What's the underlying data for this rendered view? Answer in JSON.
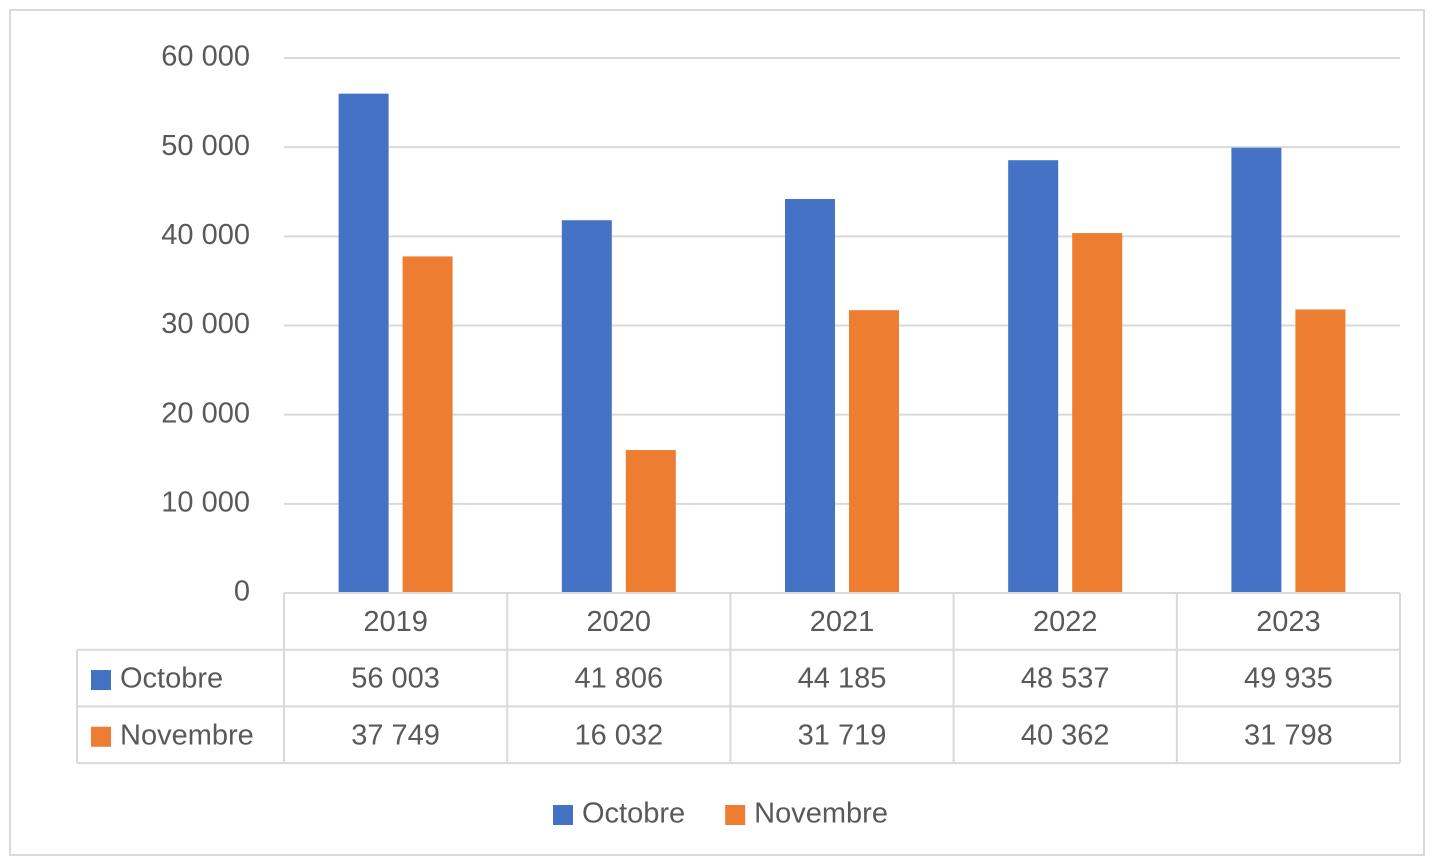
{
  "chart_data": {
    "type": "bar",
    "categories": [
      "2019",
      "2020",
      "2021",
      "2022",
      "2023"
    ],
    "series": [
      {
        "name": "Octobre",
        "color": "#4472c4",
        "values": [
          56003,
          41806,
          44185,
          48537,
          49935
        ],
        "value_labels": [
          "56 003",
          "41 806",
          "44 185",
          "48 537",
          "49 935"
        ]
      },
      {
        "name": "Novembre",
        "color": "#ed7d31",
        "values": [
          37749,
          16032,
          31719,
          40362,
          31798
        ],
        "value_labels": [
          "37 749",
          "16 032",
          "31 719",
          "40 362",
          "31 798"
        ]
      }
    ],
    "ylim": [
      0,
      60000
    ],
    "yticks": [
      0,
      {
        "value": 10000,
        "label": "10 000"
      },
      {
        "value": 20000,
        "label": "20 000"
      },
      {
        "value": 30000,
        "label": "30 000"
      },
      {
        "value": 40000,
        "label": "40 000"
      },
      {
        "value": 50000,
        "label": "50 000"
      },
      {
        "value": 60000,
        "label": "60 000"
      }
    ],
    "grid": true,
    "data_table": true,
    "legend": "bottom"
  }
}
